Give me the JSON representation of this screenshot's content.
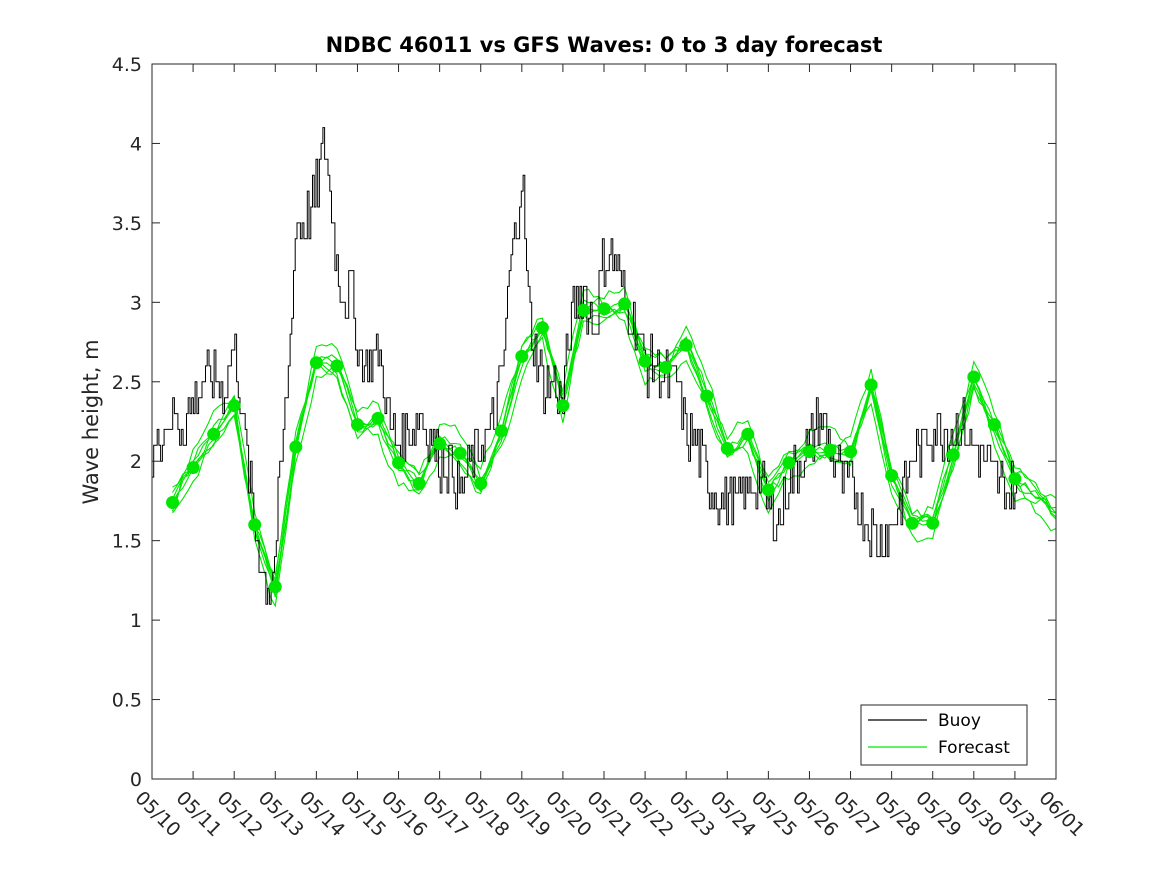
{
  "chart_data": {
    "type": "line",
    "title": "NDBC 46011 vs GFS Waves: 0 to 3 day forecast",
    "xlabel": "",
    "ylabel": "Wave height, m",
    "xlim": [
      "05/10",
      "06/01"
    ],
    "ylim": [
      0,
      4.5
    ],
    "y_ticks": [
      "0",
      "0.5",
      "1",
      "1.5",
      "2",
      "2.5",
      "3",
      "3.5",
      "4",
      "4.5"
    ],
    "x_ticks": [
      "05/10",
      "05/11",
      "05/12",
      "05/13",
      "05/14",
      "05/15",
      "05/16",
      "05/17",
      "05/18",
      "05/19",
      "05/20",
      "05/21",
      "05/22",
      "05/23",
      "05/24",
      "05/25",
      "05/26",
      "05/27",
      "05/28",
      "05/29",
      "05/30",
      "05/31",
      "06/01"
    ],
    "legend": {
      "position": "bottom-right",
      "entries": [
        "Buoy",
        "Forecast"
      ]
    },
    "colors": {
      "buoy": "#000000",
      "forecast": "#00e600",
      "marker": "#00e600"
    },
    "series": [
      {
        "name": "Buoy",
        "x_days": [
          0,
          0.25,
          0.5,
          0.75,
          1.0,
          1.25,
          1.5,
          1.75,
          2.0,
          2.15,
          2.3,
          2.5,
          2.7,
          2.85,
          3.0,
          3.15,
          3.3,
          3.5,
          3.75,
          4.0,
          4.2,
          4.4,
          4.5,
          4.7,
          4.85,
          5.0,
          5.2,
          5.5,
          5.8,
          6.0,
          6.3,
          6.5,
          6.75,
          7.0,
          7.25,
          7.5,
          7.8,
          8.0,
          8.25,
          8.5,
          8.75,
          9.0,
          9.15,
          9.3,
          9.5,
          9.75,
          10.0,
          10.25,
          10.5,
          10.75,
          11.0,
          11.25,
          11.5,
          11.75,
          12.0,
          12.25,
          12.5,
          12.75,
          13.0,
          13.25,
          13.5,
          13.75,
          14.0,
          14.25,
          14.5,
          14.75,
          15.0,
          15.25,
          15.5,
          15.75,
          16.0,
          16.25,
          16.5,
          16.75,
          17.0,
          17.25,
          17.5,
          17.75,
          18.0,
          18.25,
          18.5,
          18.75,
          19.0,
          19.25,
          19.5,
          19.75,
          20.0,
          20.25,
          20.5,
          20.75,
          21.0,
          21.1
        ],
        "values": [
          2.0,
          2.2,
          2.3,
          2.2,
          2.4,
          2.5,
          2.55,
          2.45,
          2.75,
          2.4,
          2.0,
          1.6,
          1.3,
          1.2,
          1.45,
          2.0,
          2.5,
          3.5,
          3.5,
          3.7,
          4.0,
          3.5,
          3.2,
          3.0,
          3.1,
          2.7,
          2.6,
          2.7,
          2.2,
          2.1,
          2.2,
          2.3,
          2.2,
          2.0,
          2.0,
          1.8,
          2.0,
          2.1,
          2.2,
          2.5,
          3.3,
          3.8,
          3.0,
          2.7,
          2.5,
          2.5,
          2.4,
          3.0,
          3.1,
          2.8,
          3.3,
          3.3,
          3.0,
          2.9,
          2.6,
          2.6,
          2.5,
          2.5,
          2.2,
          2.1,
          1.9,
          1.8,
          1.75,
          1.75,
          1.8,
          1.9,
          1.7,
          1.6,
          1.9,
          2.0,
          2.1,
          2.3,
          2.1,
          1.9,
          1.85,
          1.7,
          1.55,
          1.5,
          1.6,
          1.8,
          2.0,
          2.1,
          2.2,
          2.2,
          2.2,
          2.2,
          2.1,
          2.0,
          1.9,
          1.85,
          1.8,
          1.8
        ]
      },
      {
        "name": "Forecast",
        "x_days": [
          0.5,
          1.0,
          1.5,
          2.0,
          2.5,
          3.0,
          3.5,
          4.0,
          4.5,
          5.0,
          5.5,
          6.0,
          6.5,
          7.0,
          7.5,
          8.0,
          8.5,
          9.0,
          9.5,
          10.0,
          10.5,
          11.0,
          11.5,
          12.0,
          12.5,
          13.0,
          13.5,
          14.0,
          14.5,
          15.0,
          15.5,
          16.0,
          16.5,
          17.0,
          17.5,
          18.0,
          18.5,
          19.0,
          19.5,
          20.0,
          20.5,
          21.0
        ],
        "values": [
          1.74,
          1.96,
          2.17,
          2.35,
          1.6,
          1.21,
          2.09,
          2.62,
          2.6,
          2.23,
          2.27,
          1.99,
          1.86,
          2.11,
          2.05,
          1.86,
          2.19,
          2.66,
          2.84,
          2.35,
          2.95,
          2.96,
          2.99,
          2.63,
          2.59,
          2.73,
          2.41,
          2.08,
          2.17,
          1.82,
          1.99,
          2.06,
          2.07,
          2.06,
          2.48,
          1.91,
          1.61,
          1.61,
          2.04,
          2.53,
          2.23,
          1.89
        ]
      }
    ]
  }
}
